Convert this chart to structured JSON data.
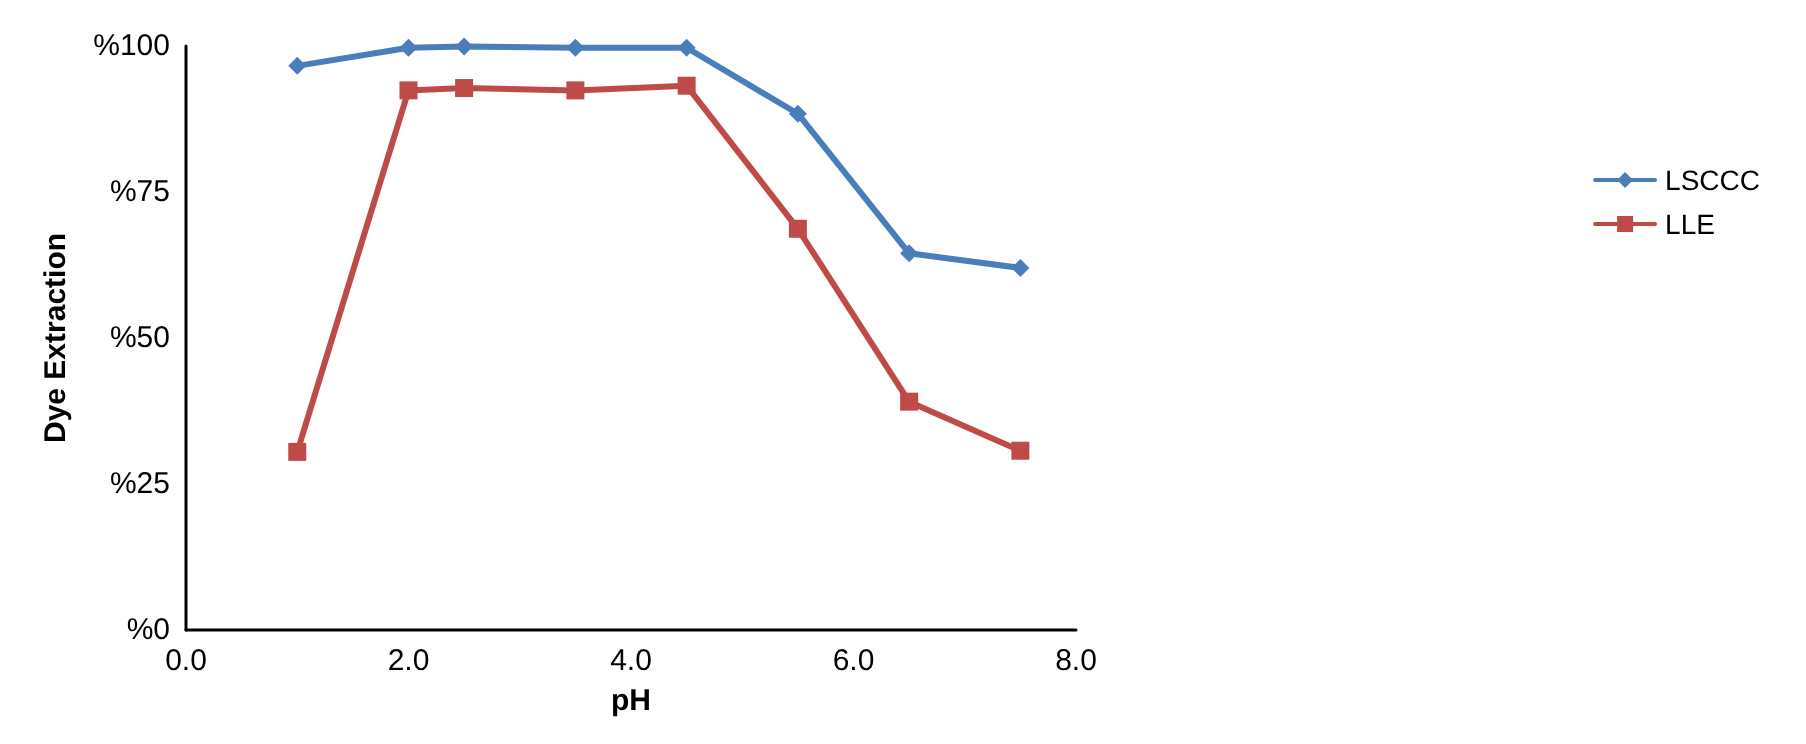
{
  "chart_data": {
    "type": "line",
    "xlabel": "pH",
    "ylabel": "Dye Extraction",
    "x": [
      1.0,
      2.0,
      2.5,
      3.5,
      4.5,
      5.5,
      6.5,
      7.5
    ],
    "series": [
      {
        "name": "LSCCC",
        "color": "#4a7ebb",
        "marker": "diamond",
        "values": [
          96.6,
          99.7,
          99.9,
          99.7,
          99.7,
          88.4,
          64.5,
          62.0
        ]
      },
      {
        "name": "LLE",
        "color": "#be4b48",
        "marker": "square",
        "values": [
          30.5,
          92.4,
          92.8,
          92.4,
          93.2,
          68.7,
          39.1,
          30.7
        ]
      }
    ],
    "xlim": [
      0,
      8
    ],
    "xticks": [
      {
        "value": 0,
        "label": "0.0"
      },
      {
        "value": 2,
        "label": "2.0"
      },
      {
        "value": 4,
        "label": "4.0"
      },
      {
        "value": 6,
        "label": "6.0"
      },
      {
        "value": 8,
        "label": "8.0"
      }
    ],
    "ylim": [
      0,
      100
    ],
    "yticks": [
      {
        "value": 0,
        "label": "%0"
      },
      {
        "value": 25,
        "label": "%25"
      },
      {
        "value": 50,
        "label": "%50"
      },
      {
        "value": 75,
        "label": "%75"
      },
      {
        "value": 100,
        "label": "%100"
      }
    ],
    "grid": false,
    "legend": "right",
    "line_style": "solid"
  }
}
